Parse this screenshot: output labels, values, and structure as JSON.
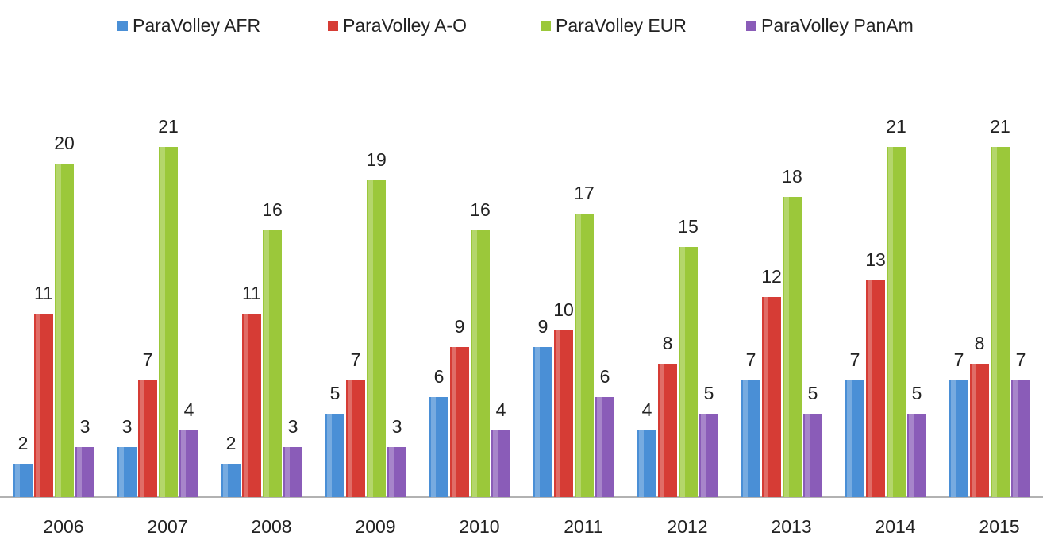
{
  "chart_data": {
    "type": "bar",
    "categories": [
      "2006",
      "2007",
      "2008",
      "2009",
      "2010",
      "2011",
      "2012",
      "2013",
      "2014",
      "2015"
    ],
    "series": [
      {
        "name": "ParaVolley AFR",
        "color": "#4a8fd6",
        "values": [
          2,
          3,
          2,
          5,
          6,
          9,
          4,
          7,
          7,
          7
        ]
      },
      {
        "name": "ParaVolley A-O",
        "color": "#d63c35",
        "values": [
          11,
          7,
          11,
          7,
          9,
          10,
          8,
          12,
          13,
          8
        ]
      },
      {
        "name": "ParaVolley EUR",
        "color": "#9bc83a",
        "values": [
          20,
          21,
          16,
          19,
          16,
          17,
          15,
          18,
          21,
          21
        ]
      },
      {
        "name": "ParaVolley PanAm",
        "color": "#8a5cb8",
        "values": [
          3,
          4,
          3,
          3,
          4,
          6,
          5,
          5,
          5,
          7
        ]
      }
    ],
    "ylim": [
      0,
      21
    ],
    "legend": "top",
    "grid": false
  }
}
